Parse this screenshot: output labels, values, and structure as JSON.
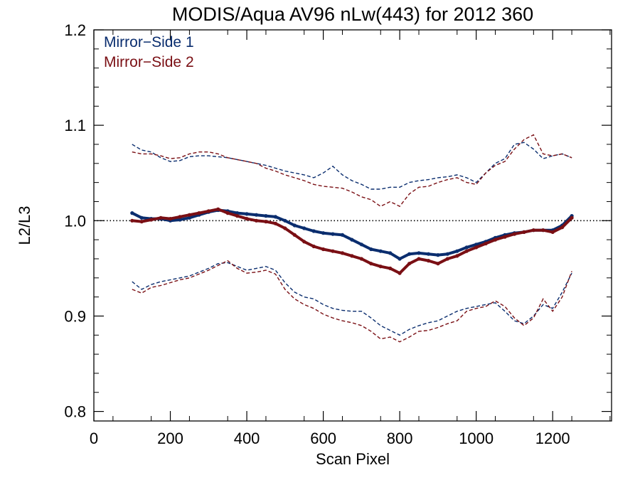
{
  "chart_data": {
    "type": "line",
    "title": "MODIS/Aqua AV96 nLw(443) for 2012 360",
    "xlabel": "Scan Pixel",
    "ylabel": "L2/L3",
    "xlim": [
      0,
      1354
    ],
    "ylim": [
      0.79,
      1.2
    ],
    "xticks": [
      0,
      200,
      400,
      600,
      800,
      1000,
      1200
    ],
    "xtick_labels": [
      "0",
      "200",
      "400",
      "600",
      "800",
      "1000",
      "1200"
    ],
    "yticks": [
      0.8,
      0.9,
      1.0,
      1.1,
      1.2
    ],
    "ytick_labels": [
      "0.8",
      "0.9",
      "1.0",
      "1.1",
      "1.2"
    ],
    "grid": false,
    "legend_position": "top-left",
    "reference_line": {
      "y": 1.0,
      "style": "dotted"
    },
    "series": [
      {
        "name": "Mirror−Side 1",
        "color": "#0a2d6e",
        "style": "dots",
        "x": [
          100,
          125,
          150,
          175,
          200,
          225,
          250,
          275,
          300,
          325,
          350,
          375,
          400,
          425,
          450,
          475,
          500,
          525,
          550,
          575,
          600,
          625,
          650,
          675,
          700,
          725,
          750,
          775,
          800,
          825,
          850,
          875,
          900,
          925,
          950,
          975,
          1000,
          1025,
          1050,
          1075,
          1100,
          1125,
          1150,
          1175,
          1200,
          1225,
          1250
        ],
        "y": [
          1.008,
          1.003,
          1.002,
          1.002,
          1.0,
          1.001,
          1.003,
          1.006,
          1.009,
          1.011,
          1.01,
          1.008,
          1.007,
          1.006,
          1.005,
          1.004,
          1.0,
          0.995,
          0.992,
          0.989,
          0.987,
          0.986,
          0.985,
          0.98,
          0.975,
          0.97,
          0.968,
          0.966,
          0.96,
          0.965,
          0.966,
          0.965,
          0.964,
          0.965,
          0.968,
          0.972,
          0.975,
          0.978,
          0.982,
          0.985,
          0.987,
          0.988,
          0.99,
          0.99,
          0.99,
          0.995,
          1.005
        ]
      },
      {
        "name": "Mirror−Side 2",
        "color": "#7a0f14",
        "style": "dots",
        "x": [
          100,
          125,
          150,
          175,
          200,
          225,
          250,
          275,
          300,
          325,
          350,
          375,
          400,
          425,
          450,
          475,
          500,
          525,
          550,
          575,
          600,
          625,
          650,
          675,
          700,
          725,
          750,
          775,
          800,
          825,
          850,
          875,
          900,
          925,
          950,
          975,
          1000,
          1025,
          1050,
          1075,
          1100,
          1125,
          1150,
          1175,
          1200,
          1225,
          1250
        ],
        "y": [
          1.0,
          0.999,
          1.001,
          1.003,
          1.002,
          1.004,
          1.006,
          1.008,
          1.01,
          1.012,
          1.008,
          1.005,
          1.002,
          1.0,
          0.999,
          0.997,
          0.992,
          0.985,
          0.978,
          0.973,
          0.97,
          0.968,
          0.966,
          0.963,
          0.96,
          0.955,
          0.952,
          0.95,
          0.945,
          0.955,
          0.96,
          0.958,
          0.955,
          0.96,
          0.963,
          0.968,
          0.972,
          0.976,
          0.98,
          0.983,
          0.986,
          0.988,
          0.99,
          0.99,
          0.988,
          0.993,
          1.003
        ]
      },
      {
        "name": "",
        "color": "#0a2d6e",
        "style": "dashed",
        "x": [
          100,
          125,
          150,
          175,
          200,
          225,
          250,
          275,
          300,
          325,
          350,
          375,
          400,
          425,
          450,
          475,
          500,
          525,
          550,
          575,
          600,
          625,
          650,
          675,
          700,
          725,
          750,
          775,
          800,
          825,
          850,
          875,
          900,
          925,
          950,
          975,
          1000,
          1025,
          1050,
          1075,
          1100,
          1125,
          1150,
          1175,
          1200,
          1225,
          1250
        ],
        "y": [
          1.08,
          1.074,
          1.072,
          1.066,
          1.062,
          1.063,
          1.067,
          1.068,
          1.068,
          1.067,
          1.066,
          1.064,
          1.062,
          1.06,
          1.058,
          1.055,
          1.052,
          1.05,
          1.048,
          1.045,
          1.05,
          1.057,
          1.048,
          1.042,
          1.038,
          1.033,
          1.033,
          1.035,
          1.035,
          1.04,
          1.042,
          1.043,
          1.045,
          1.046,
          1.048,
          1.045,
          1.04,
          1.05,
          1.06,
          1.065,
          1.08,
          1.082,
          1.075,
          1.065,
          1.068,
          1.07,
          1.066
        ]
      },
      {
        "name": "",
        "color": "#7a0f14",
        "style": "dashed",
        "x": [
          100,
          125,
          150,
          175,
          200,
          225,
          250,
          275,
          300,
          325,
          350,
          375,
          400,
          425,
          450,
          475,
          500,
          525,
          550,
          575,
          600,
          625,
          650,
          675,
          700,
          725,
          750,
          775,
          800,
          825,
          850,
          875,
          900,
          925,
          950,
          975,
          1000,
          1025,
          1050,
          1075,
          1100,
          1125,
          1150,
          1175,
          1200,
          1225,
          1250
        ],
        "y": [
          1.072,
          1.07,
          1.07,
          1.068,
          1.065,
          1.066,
          1.07,
          1.072,
          1.072,
          1.07,
          1.066,
          1.064,
          1.062,
          1.06,
          1.055,
          1.052,
          1.048,
          1.045,
          1.042,
          1.038,
          1.036,
          1.035,
          1.034,
          1.03,
          1.025,
          1.022,
          1.015,
          1.02,
          1.015,
          1.028,
          1.035,
          1.036,
          1.04,
          1.043,
          1.045,
          1.04,
          1.038,
          1.05,
          1.058,
          1.062,
          1.075,
          1.085,
          1.09,
          1.07,
          1.068,
          1.07,
          1.066
        ]
      },
      {
        "name": "",
        "color": "#0a2d6e",
        "style": "dashed",
        "x": [
          100,
          125,
          150,
          175,
          200,
          225,
          250,
          275,
          300,
          325,
          350,
          375,
          400,
          425,
          450,
          475,
          500,
          525,
          550,
          575,
          600,
          625,
          650,
          675,
          700,
          725,
          750,
          775,
          800,
          825,
          850,
          875,
          900,
          925,
          950,
          975,
          1000,
          1025,
          1050,
          1075,
          1100,
          1125,
          1150,
          1175,
          1200,
          1225,
          1250
        ],
        "y": [
          0.936,
          0.928,
          0.933,
          0.936,
          0.938,
          0.94,
          0.942,
          0.946,
          0.95,
          0.955,
          0.956,
          0.952,
          0.948,
          0.95,
          0.952,
          0.948,
          0.935,
          0.925,
          0.92,
          0.918,
          0.912,
          0.908,
          0.906,
          0.905,
          0.905,
          0.898,
          0.89,
          0.885,
          0.88,
          0.886,
          0.89,
          0.893,
          0.895,
          0.9,
          0.905,
          0.908,
          0.91,
          0.912,
          0.914,
          0.905,
          0.895,
          0.892,
          0.9,
          0.912,
          0.908,
          0.925,
          0.945
        ]
      },
      {
        "name": "",
        "color": "#7a0f14",
        "style": "dashed",
        "x": [
          100,
          125,
          150,
          175,
          200,
          225,
          250,
          275,
          300,
          325,
          350,
          375,
          400,
          425,
          450,
          475,
          500,
          525,
          550,
          575,
          600,
          625,
          650,
          675,
          700,
          725,
          750,
          775,
          800,
          825,
          850,
          875,
          900,
          925,
          950,
          975,
          1000,
          1025,
          1050,
          1075,
          1100,
          1125,
          1150,
          1175,
          1200,
          1225,
          1250
        ],
        "y": [
          0.928,
          0.924,
          0.93,
          0.932,
          0.935,
          0.938,
          0.94,
          0.944,
          0.948,
          0.953,
          0.958,
          0.95,
          0.945,
          0.946,
          0.948,
          0.944,
          0.928,
          0.918,
          0.912,
          0.908,
          0.902,
          0.898,
          0.895,
          0.893,
          0.89,
          0.884,
          0.876,
          0.878,
          0.873,
          0.878,
          0.884,
          0.885,
          0.888,
          0.892,
          0.895,
          0.905,
          0.908,
          0.91,
          0.916,
          0.91,
          0.898,
          0.89,
          0.898,
          0.918,
          0.905,
          0.92,
          0.947
        ]
      }
    ]
  },
  "legend": {
    "items": [
      {
        "label": "Mirror−Side 1",
        "color": "#0a2d6e"
      },
      {
        "label": "Mirror−Side 2",
        "color": "#7a0f14"
      }
    ]
  }
}
